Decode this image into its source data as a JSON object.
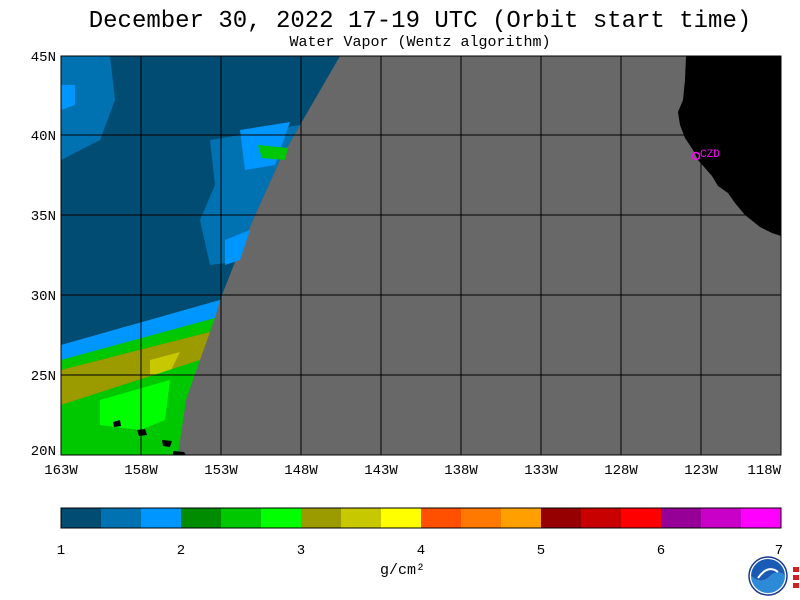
{
  "header": {
    "title": "December 30, 2022  17-19 UTC  (Orbit start time)",
    "subtitle": "Water Vapor (Wentz algorithm)"
  },
  "map": {
    "lat_labels": [
      "45N",
      "40N",
      "35N",
      "30N",
      "25N",
      "20N"
    ],
    "lon_labels": [
      "163W",
      "158W",
      "153W",
      "148W",
      "143W",
      "138W",
      "133W",
      "128W",
      "123W",
      "118W"
    ],
    "station_label": "CZD",
    "colors": {
      "land": "#000000",
      "no_data": "#686868",
      "grid": "#000000",
      "station": "#ff00ff"
    }
  },
  "colorbar": {
    "tick_labels": [
      "1",
      "2",
      "3",
      "4",
      "5",
      "6",
      "7"
    ],
    "units": "g/cm²",
    "colors": [
      "#004c73",
      "#0072b2",
      "#0096ff",
      "#008c00",
      "#00c800",
      "#00ff00",
      "#9b9b00",
      "#c8c800",
      "#ffff00",
      "#ff5000",
      "#ff7800",
      "#ffa000",
      "#960000",
      "#c80000",
      "#ff0000",
      "#960096",
      "#c800c8",
      "#ff00ff"
    ]
  },
  "logo": {
    "name": "noaa-logo"
  }
}
